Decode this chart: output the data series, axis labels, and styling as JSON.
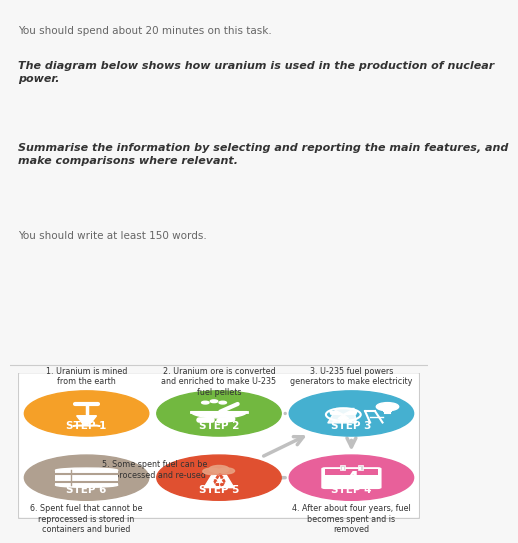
{
  "instruction1": "You should spend about 20 minutes on this task.",
  "instruction2_bold": "The diagram below shows how uranium is used in the production of nuclear\npower.",
  "instruction3_bold": "Summarise the information by selecting and reporting the main features, and\nmake comparisons where relevant.",
  "instruction4": "You should write at least 150 words.",
  "bg_color": "#f7f7f7",
  "diagram_bg": "#ffffff",
  "step_colors": {
    "1": "#f5a028",
    "2": "#72b840",
    "3": "#45b0d0",
    "4": "#e8609a",
    "5": "#e05030",
    "6": "#b0a090"
  },
  "step_labels": {
    "1": "STEP 1",
    "2": "STEP 2",
    "3": "STEP 3",
    "4": "STEP 4",
    "5": "STEP 5",
    "6": "STEP 6"
  },
  "step_texts": {
    "1": "1. Uranium is mined\nfrom the earth",
    "2": "2. Uranium ore is converted\nand enriched to make U-235\nfuel pellets",
    "3": "3. U-235 fuel powers\ngenerators to make electricity",
    "4": "4. After about four years, fuel\nbecomes spent and is\nremoved",
    "5": "5. Some spent fuel can be\nre-processed and re-used",
    "6": "6. Spent fuel that cannot be\nreprocessed is stored in\ncontainers and buried"
  },
  "arrow_color": "#c0c0c0",
  "text_color": "#444444",
  "text_color_light": "#666666"
}
